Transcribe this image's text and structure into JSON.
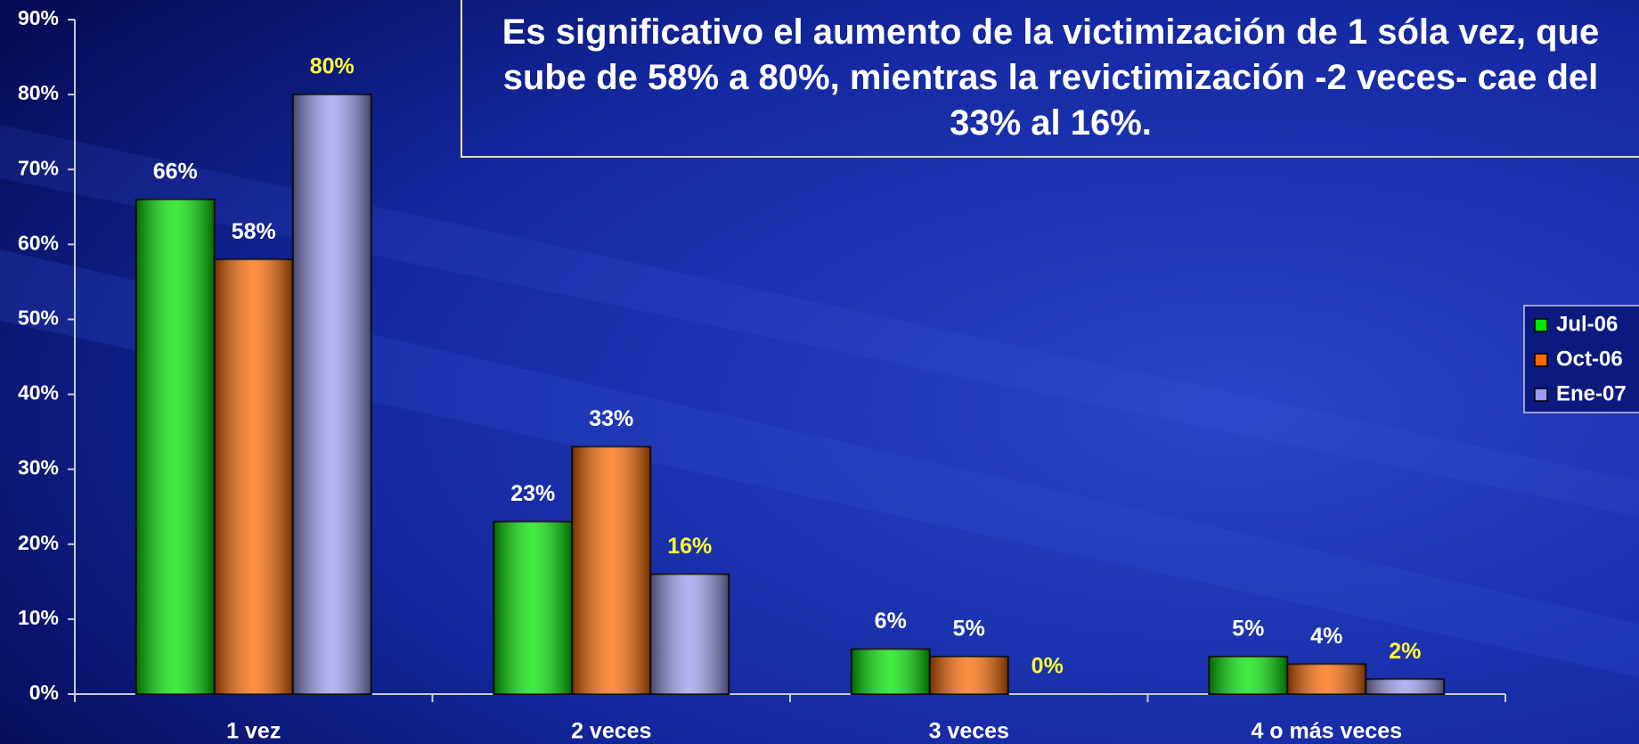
{
  "chart_data": {
    "type": "bar",
    "title": "Es significativo el aumento de la victimización de 1 sóla vez, que sube de 58% a 80%, mientras la revictimización -2 veces-  cae del 33% al 16%.",
    "categories": [
      "1 vez",
      "2 veces",
      "3 veces",
      "4 o más veces"
    ],
    "series": [
      {
        "name": "Jul-06",
        "color": "#00e600",
        "label_color": "#ffffff",
        "values": [
          66,
          23,
          6,
          5
        ],
        "value_labels": [
          "66%",
          "23%",
          "6%",
          "5%"
        ]
      },
      {
        "name": "Oct-06",
        "color": "#ff6a00",
        "label_color": "#ffffff",
        "values": [
          58,
          33,
          5,
          4
        ],
        "value_labels": [
          "58%",
          "33%",
          "5%",
          "4%"
        ]
      },
      {
        "name": "Ene-07",
        "color": "#9a9cf0",
        "label_color": "#ffff33",
        "values": [
          80,
          16,
          0,
          2
        ],
        "value_labels": [
          "80%",
          "16%",
          "0%",
          "2%"
        ]
      }
    ],
    "ylim": [
      0,
      90
    ],
    "yticks": [
      {
        "value": 0,
        "label": "0%"
      },
      {
        "value": 10,
        "label": "10%"
      },
      {
        "value": 20,
        "label": "20%"
      },
      {
        "value": 30,
        "label": "30%"
      },
      {
        "value": 40,
        "label": "40%"
      },
      {
        "value": 50,
        "label": "50%"
      },
      {
        "value": 60,
        "label": "60%"
      },
      {
        "value": 70,
        "label": "70%"
      },
      {
        "value": 80,
        "label": "80%"
      },
      {
        "value": 90,
        "label": "90%"
      }
    ],
    "legend": "right"
  }
}
